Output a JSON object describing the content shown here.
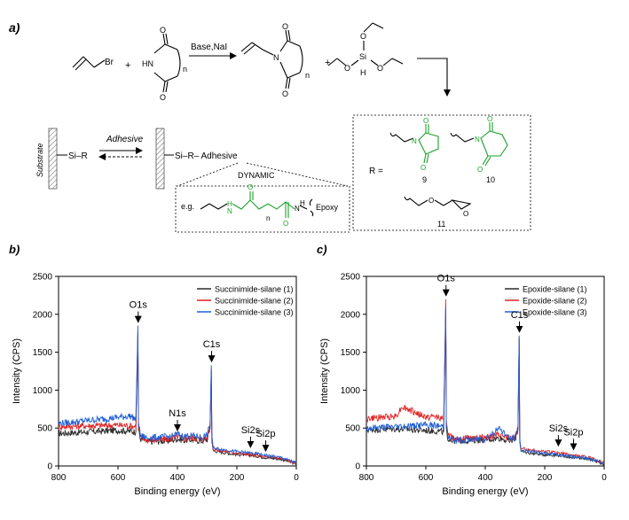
{
  "scheme": {
    "panel_label": "a)",
    "allyl_bromide_label": "Br",
    "plus_1": "+",
    "plus_2": "+",
    "imide_nh": "HN",
    "imide_n_index": "n",
    "reaction_conditions": "Base,NaI",
    "product_n_label": "N",
    "product_n_index": "n",
    "silane_si": "Si",
    "silane_h": "H",
    "silane_o1": "O",
    "silane_o2": "O",
    "silane_o3": "O",
    "substrate_label": "Substrate",
    "surface_1_label": "Si–R",
    "adhesive_arrow_label": "Adhesive",
    "surface_2_label": "Si–R– Adhesive",
    "dynamic_label": "DYNAMIC",
    "eg_label": "e.g.",
    "dynamic_nh_1": "H",
    "dynamic_n_1": "N",
    "dynamic_n_index": "n",
    "dynamic_nh_2": "N",
    "dynamic_h_2": "H",
    "epoxy_label": "Epoxy",
    "r_equals": "R =",
    "r_group_1_number": "9",
    "r_group_2_number": "10",
    "r_group_3_number": "11",
    "r_group_n1": "N",
    "r_group_n2": "N",
    "r_group_o3": "O"
  },
  "colors": {
    "green": "#1aa22a",
    "series_1": "#2b2b2b",
    "series_2": "#e02020",
    "series_3": "#1f5fd6"
  },
  "chart_data": [
    {
      "type": "line",
      "panel_label": "b)",
      "xlabel": "Binding energy (eV)",
      "ylabel": "Intensity (CPS)",
      "xlim": [
        800,
        0
      ],
      "ylim": [
        0,
        2500
      ],
      "x_ticks": [
        800,
        600,
        400,
        200,
        0
      ],
      "y_ticks": [
        0,
        500,
        1000,
        1500,
        2000,
        2500
      ],
      "grid": false,
      "legend_position": "top-right",
      "series": [
        {
          "name": "Succinimide-silane (1)",
          "color": "#2b2b2b",
          "x": [
            800,
            700,
            600,
            560,
            540,
            533,
            531,
            525,
            500,
            450,
            420,
            400,
            380,
            350,
            320,
            300,
            290,
            286,
            284,
            280,
            250,
            200,
            150,
            100,
            50,
            0
          ],
          "y": [
            430,
            450,
            470,
            460,
            450,
            1720,
            470,
            360,
            320,
            330,
            340,
            360,
            340,
            350,
            330,
            350,
            500,
            1250,
            330,
            200,
            180,
            150,
            140,
            110,
            90,
            30
          ]
        },
        {
          "name": "Succinimide-silane (2)",
          "color": "#e02020",
          "x": [
            800,
            700,
            600,
            560,
            540,
            533,
            531,
            525,
            500,
            450,
            420,
            400,
            380,
            350,
            320,
            300,
            290,
            286,
            284,
            280,
            250,
            200,
            150,
            100,
            50,
            0
          ],
          "y": [
            520,
            530,
            540,
            530,
            520,
            1780,
            520,
            380,
            340,
            350,
            360,
            390,
            360,
            370,
            350,
            370,
            520,
            1290,
            350,
            220,
            200,
            170,
            150,
            120,
            100,
            35
          ]
        },
        {
          "name": "Succinimide-silane (3)",
          "color": "#1f5fd6",
          "x": [
            800,
            700,
            600,
            560,
            540,
            533,
            531,
            525,
            500,
            450,
            420,
            400,
            380,
            350,
            320,
            300,
            290,
            286,
            284,
            280,
            250,
            200,
            150,
            100,
            50,
            0
          ],
          "y": [
            560,
            600,
            640,
            660,
            620,
            1850,
            600,
            400,
            370,
            380,
            390,
            420,
            390,
            400,
            380,
            400,
            560,
            1330,
            370,
            240,
            220,
            190,
            170,
            140,
            110,
            40
          ]
        }
      ],
      "annotations": [
        {
          "text": "O1s",
          "x": 532,
          "y": 1850
        },
        {
          "text": "N1s",
          "x": 400,
          "y": 420
        },
        {
          "text": "C1s",
          "x": 285,
          "y": 1330
        },
        {
          "text": "Si2s",
          "x": 154,
          "y": 200
        },
        {
          "text": "Si2p",
          "x": 103,
          "y": 150
        }
      ]
    },
    {
      "type": "line",
      "panel_label": "c)",
      "xlabel": "Binding energy (eV)",
      "ylabel": "Intensity (CPS)",
      "xlim": [
        800,
        0
      ],
      "ylim": [
        0,
        2500
      ],
      "x_ticks": [
        800,
        600,
        400,
        200,
        0
      ],
      "y_ticks": [
        0,
        500,
        1000,
        1500,
        2000,
        2500
      ],
      "grid": false,
      "legend_position": "top-right",
      "series": [
        {
          "name": "Epoxide-silane (1)",
          "color": "#2b2b2b",
          "x": [
            800,
            700,
            600,
            560,
            540,
            533,
            531,
            525,
            500,
            450,
            400,
            350,
            320,
            300,
            290,
            286,
            284,
            280,
            250,
            200,
            150,
            100,
            50,
            0
          ],
          "y": [
            480,
            490,
            470,
            460,
            450,
            2050,
            460,
            360,
            330,
            340,
            350,
            370,
            330,
            350,
            480,
            1680,
            330,
            190,
            170,
            150,
            140,
            110,
            90,
            30
          ]
        },
        {
          "name": "Epoxide-silane (2)",
          "color": "#e02020",
          "x": [
            800,
            700,
            680,
            600,
            560,
            540,
            533,
            531,
            525,
            500,
            450,
            400,
            350,
            320,
            300,
            290,
            286,
            284,
            280,
            250,
            200,
            150,
            100,
            50,
            0
          ],
          "y": [
            620,
            660,
            780,
            640,
            650,
            620,
            2200,
            620,
            400,
            360,
            370,
            380,
            400,
            360,
            380,
            520,
            1700,
            360,
            230,
            210,
            190,
            170,
            140,
            110,
            40
          ]
        },
        {
          "name": "Epoxide-silane (3)",
          "color": "#1f5fd6",
          "x": [
            800,
            700,
            600,
            560,
            540,
            533,
            531,
            525,
            500,
            450,
            400,
            350,
            320,
            300,
            290,
            286,
            284,
            280,
            250,
            200,
            150,
            100,
            50,
            0
          ],
          "y": [
            500,
            520,
            540,
            530,
            520,
            2100,
            520,
            380,
            340,
            350,
            360,
            500,
            360,
            370,
            500,
            1720,
            340,
            210,
            190,
            170,
            150,
            120,
            100,
            35
          ]
        }
      ],
      "annotations": [
        {
          "text": "O1s",
          "x": 532,
          "y": 2200
        },
        {
          "text": "C1s",
          "x": 285,
          "y": 1720
        },
        {
          "text": "Si2s",
          "x": 154,
          "y": 220
        },
        {
          "text": "Si2p",
          "x": 103,
          "y": 170
        }
      ]
    }
  ]
}
